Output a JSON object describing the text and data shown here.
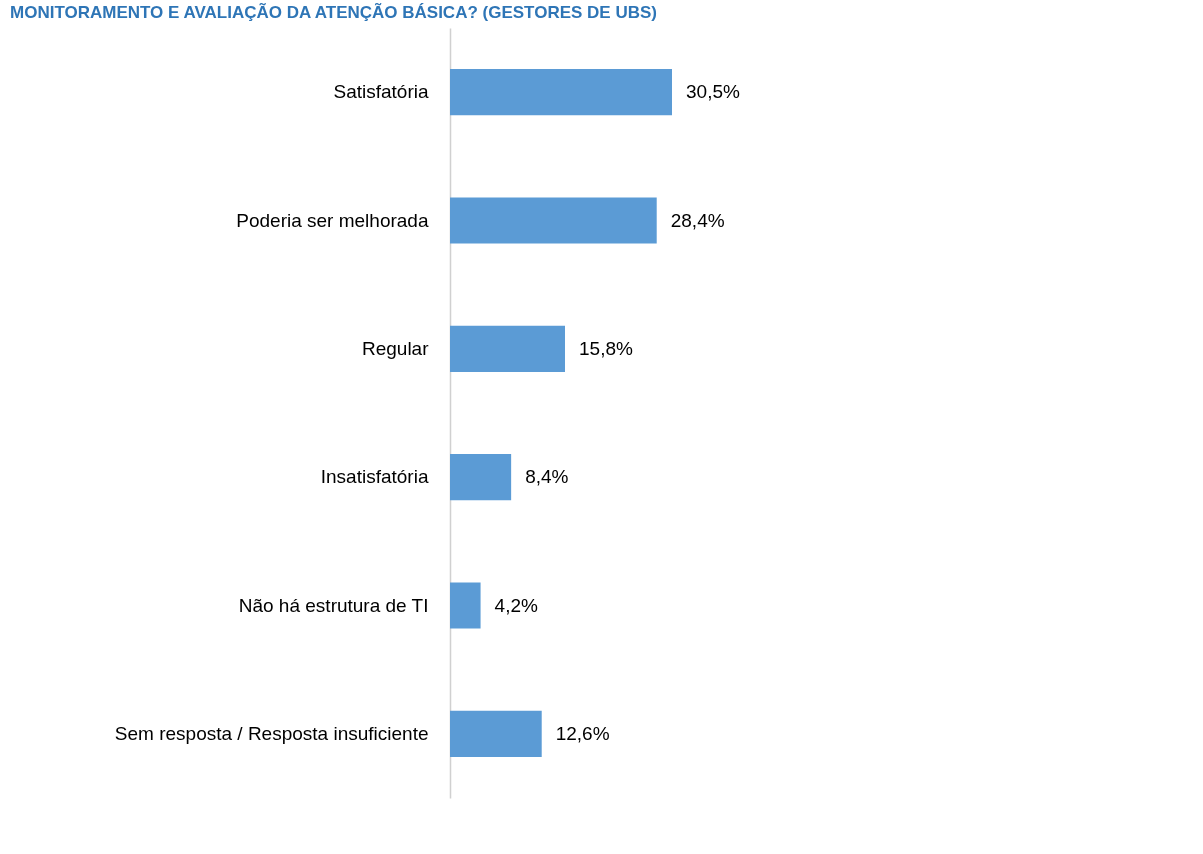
{
  "chart_data": {
    "type": "bar",
    "orientation": "horizontal",
    "title": "MONITORAMENTO E AVALIAÇÃO DA ATENÇÃO BÁSICA? (GESTORES DE UBS)",
    "categories": [
      "Satisfatória",
      "Poderia ser melhorada",
      "Regular",
      "Insatisfatória",
      "Não há estrutura de TI",
      "Sem resposta / Resposta insuficiente"
    ],
    "values": [
      30.5,
      28.4,
      15.8,
      8.4,
      4.2,
      12.6
    ],
    "value_labels": [
      "30,5%",
      "28,4%",
      "15,8%",
      "8,4%",
      "4,2%",
      "12,6%"
    ],
    "color": "#5b9bd5"
  }
}
